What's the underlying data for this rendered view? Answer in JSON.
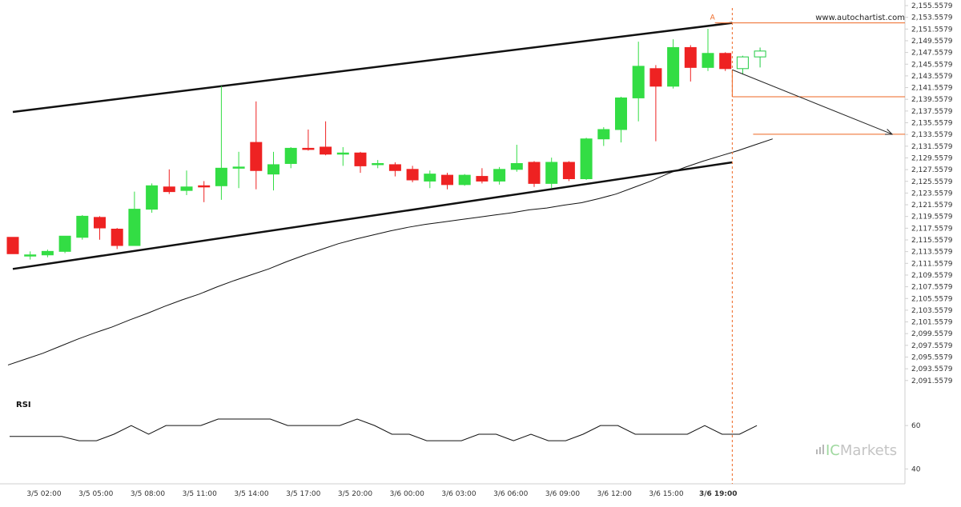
{
  "chart_data": {
    "type": "candlestick",
    "watermark": "www.autochartist.com",
    "brand": {
      "prefix": "IC",
      "suffix": "Markets"
    },
    "price_axis": {
      "labels": [
        "2,155.5579",
        "2,153.5579",
        "2,151.5579",
        "2,149.5579",
        "2,147.5579",
        "2,145.5579",
        "2,143.5579",
        "2,141.5579",
        "2,139.5579",
        "2,137.5579",
        "2,135.5579",
        "2,133.5579",
        "2,131.5579",
        "2,129.5579",
        "2,127.5579",
        "2,125.5579",
        "2,123.5579",
        "2,121.5579",
        "2,119.5579",
        "2,117.5579",
        "2,115.5579",
        "2,113.5579",
        "2,111.5579",
        "2,109.5579",
        "2,107.5579",
        "2,105.5579",
        "2,103.5579",
        "2,101.5579",
        "2,099.5579",
        "2,097.5579",
        "2,095.5579",
        "2,093.5579",
        "2,091.5579"
      ],
      "ylim": [
        2090.5579,
        2156.0
      ]
    },
    "time_axis": {
      "labels": [
        "3/5 02:00",
        "3/5 05:00",
        "3/5 08:00",
        "3/5 11:00",
        "3/5 14:00",
        "3/5 17:00",
        "3/5 20:00",
        "3/6 00:00",
        "3/6 03:00",
        "3/6 06:00",
        "3/6 09:00",
        "3/6 12:00",
        "3/6 15:00",
        "3/6 19:00"
      ],
      "highlight": "3/6 19:00"
    },
    "candles": [
      {
        "o": 2116.0,
        "h": 2116.0,
        "l": 2113.2,
        "c": 2113.2
      },
      {
        "o": 2113.0,
        "h": 2113.6,
        "l": 2112.2,
        "c": 2113.0
      },
      {
        "o": 2113.0,
        "h": 2113.9,
        "l": 2112.6,
        "c": 2113.6
      },
      {
        "o": 2113.6,
        "h": 2116.2,
        "l": 2113.3,
        "c": 2116.2
      },
      {
        "o": 2116.0,
        "h": 2119.8,
        "l": 2115.6,
        "c": 2119.6
      },
      {
        "o": 2119.4,
        "h": 2119.6,
        "l": 2115.6,
        "c": 2117.6
      },
      {
        "o": 2117.4,
        "h": 2117.6,
        "l": 2114.0,
        "c": 2114.6
      },
      {
        "o": 2114.6,
        "h": 2123.8,
        "l": 2114.6,
        "c": 2120.8
      },
      {
        "o": 2120.8,
        "h": 2125.2,
        "l": 2120.2,
        "c": 2124.8
      },
      {
        "o": 2124.6,
        "h": 2127.6,
        "l": 2123.4,
        "c": 2123.8
      },
      {
        "o": 2124.0,
        "h": 2127.4,
        "l": 2123.2,
        "c": 2124.6
      },
      {
        "o": 2124.8,
        "h": 2125.6,
        "l": 2122.0,
        "c": 2124.6
      },
      {
        "o": 2124.8,
        "h": 2141.8,
        "l": 2122.4,
        "c": 2127.8
      },
      {
        "o": 2128.0,
        "h": 2130.6,
        "l": 2124.4,
        "c": 2128.0
      },
      {
        "o": 2132.2,
        "h": 2139.2,
        "l": 2124.2,
        "c": 2127.4
      },
      {
        "o": 2126.8,
        "h": 2130.6,
        "l": 2124.0,
        "c": 2128.4
      },
      {
        "o": 2128.6,
        "h": 2131.4,
        "l": 2127.8,
        "c": 2131.2
      },
      {
        "o": 2131.2,
        "h": 2134.4,
        "l": 2130.8,
        "c": 2131.0
      },
      {
        "o": 2131.4,
        "h": 2135.8,
        "l": 2130.0,
        "c": 2130.2
      },
      {
        "o": 2130.2,
        "h": 2131.4,
        "l": 2128.2,
        "c": 2130.4
      },
      {
        "o": 2130.4,
        "h": 2130.6,
        "l": 2127.0,
        "c": 2128.2
      },
      {
        "o": 2128.4,
        "h": 2129.2,
        "l": 2127.8,
        "c": 2128.6
      },
      {
        "o": 2128.4,
        "h": 2128.8,
        "l": 2126.4,
        "c": 2127.4
      },
      {
        "o": 2127.6,
        "h": 2128.2,
        "l": 2125.4,
        "c": 2125.8
      },
      {
        "o": 2125.6,
        "h": 2127.4,
        "l": 2124.4,
        "c": 2126.8
      },
      {
        "o": 2126.6,
        "h": 2127.0,
        "l": 2124.2,
        "c": 2125.0
      },
      {
        "o": 2125.0,
        "h": 2126.8,
        "l": 2124.8,
        "c": 2126.6
      },
      {
        "o": 2126.4,
        "h": 2127.8,
        "l": 2125.2,
        "c": 2125.6
      },
      {
        "o": 2125.6,
        "h": 2128.0,
        "l": 2125.0,
        "c": 2127.6
      },
      {
        "o": 2127.6,
        "h": 2131.8,
        "l": 2127.2,
        "c": 2128.6
      },
      {
        "o": 2128.8,
        "h": 2129.0,
        "l": 2124.6,
        "c": 2125.2
      },
      {
        "o": 2125.2,
        "h": 2129.6,
        "l": 2124.4,
        "c": 2128.8
      },
      {
        "o": 2128.8,
        "h": 2129.0,
        "l": 2125.6,
        "c": 2126.0
      },
      {
        "o": 2126.0,
        "h": 2133.0,
        "l": 2125.8,
        "c": 2132.8
      },
      {
        "o": 2132.8,
        "h": 2134.8,
        "l": 2131.6,
        "c": 2134.4
      },
      {
        "o": 2134.4,
        "h": 2140.0,
        "l": 2132.2,
        "c": 2139.8
      },
      {
        "o": 2139.8,
        "h": 2149.4,
        "l": 2135.8,
        "c": 2145.2
      },
      {
        "o": 2144.8,
        "h": 2145.4,
        "l": 2132.4,
        "c": 2141.8
      },
      {
        "o": 2141.8,
        "h": 2149.8,
        "l": 2141.4,
        "c": 2148.4
      },
      {
        "o": 2148.4,
        "h": 2148.8,
        "l": 2142.6,
        "c": 2145.0
      },
      {
        "o": 2145.0,
        "h": 2151.6,
        "l": 2144.4,
        "c": 2147.4
      },
      {
        "o": 2147.4,
        "h": 2147.6,
        "l": 2144.4,
        "c": 2144.8
      }
    ],
    "forecast_candles": [
      {
        "o": 2144.8,
        "h": 2147.0,
        "l": 2143.8,
        "c": 2146.8
      },
      {
        "o": 2146.8,
        "h": 2148.4,
        "l": 2145.0,
        "c": 2147.8
      }
    ],
    "moving_average": [
      2094.2,
      2095.2,
      2096.2,
      2097.4,
      2098.6,
      2099.7,
      2100.7,
      2101.9,
      2103.0,
      2104.2,
      2105.3,
      2106.3,
      2107.5,
      2108.6,
      2109.6,
      2110.6,
      2111.8,
      2112.9,
      2113.9,
      2114.9,
      2115.7,
      2116.4,
      2117.1,
      2117.7,
      2118.2,
      2118.6,
      2119.0,
      2119.4,
      2119.8,
      2120.2,
      2120.7,
      2121.0,
      2121.5,
      2121.9,
      2122.6,
      2123.4,
      2124.5,
      2125.6,
      2126.9,
      2128.0,
      2129.0,
      2129.9,
      2130.8,
      2131.8,
      2132.8
    ],
    "channel": {
      "upper": {
        "from": [
          0,
          2137.4
        ],
        "to": [
          41.4,
          2152.6
        ]
      },
      "lower": {
        "from": [
          0,
          2110.6
        ],
        "to": [
          41.4,
          2128.8
        ]
      }
    },
    "breakout_marker": "A",
    "levels": {
      "resistance": 2152.6,
      "entry": 2140.0,
      "target": 2133.6
    },
    "forecast_arrow": {
      "from": [
        41.4,
        2144.6
      ],
      "to": [
        50.6,
        2133.6
      ]
    },
    "rsi": {
      "label": "RSI",
      "ticks": [
        "60",
        "40"
      ],
      "tick_values": [
        60,
        40
      ],
      "range": [
        35,
        70
      ],
      "values": [
        55,
        55,
        55,
        55,
        53,
        53,
        56,
        60,
        56,
        60,
        60,
        60,
        63,
        63,
        63,
        63,
        60,
        60,
        60,
        60,
        63,
        60,
        56,
        56,
        53,
        53,
        53,
        56,
        56,
        53,
        56,
        53,
        53,
        56,
        60,
        60,
        56,
        56,
        56,
        56,
        60,
        56,
        56,
        60
      ]
    }
  }
}
